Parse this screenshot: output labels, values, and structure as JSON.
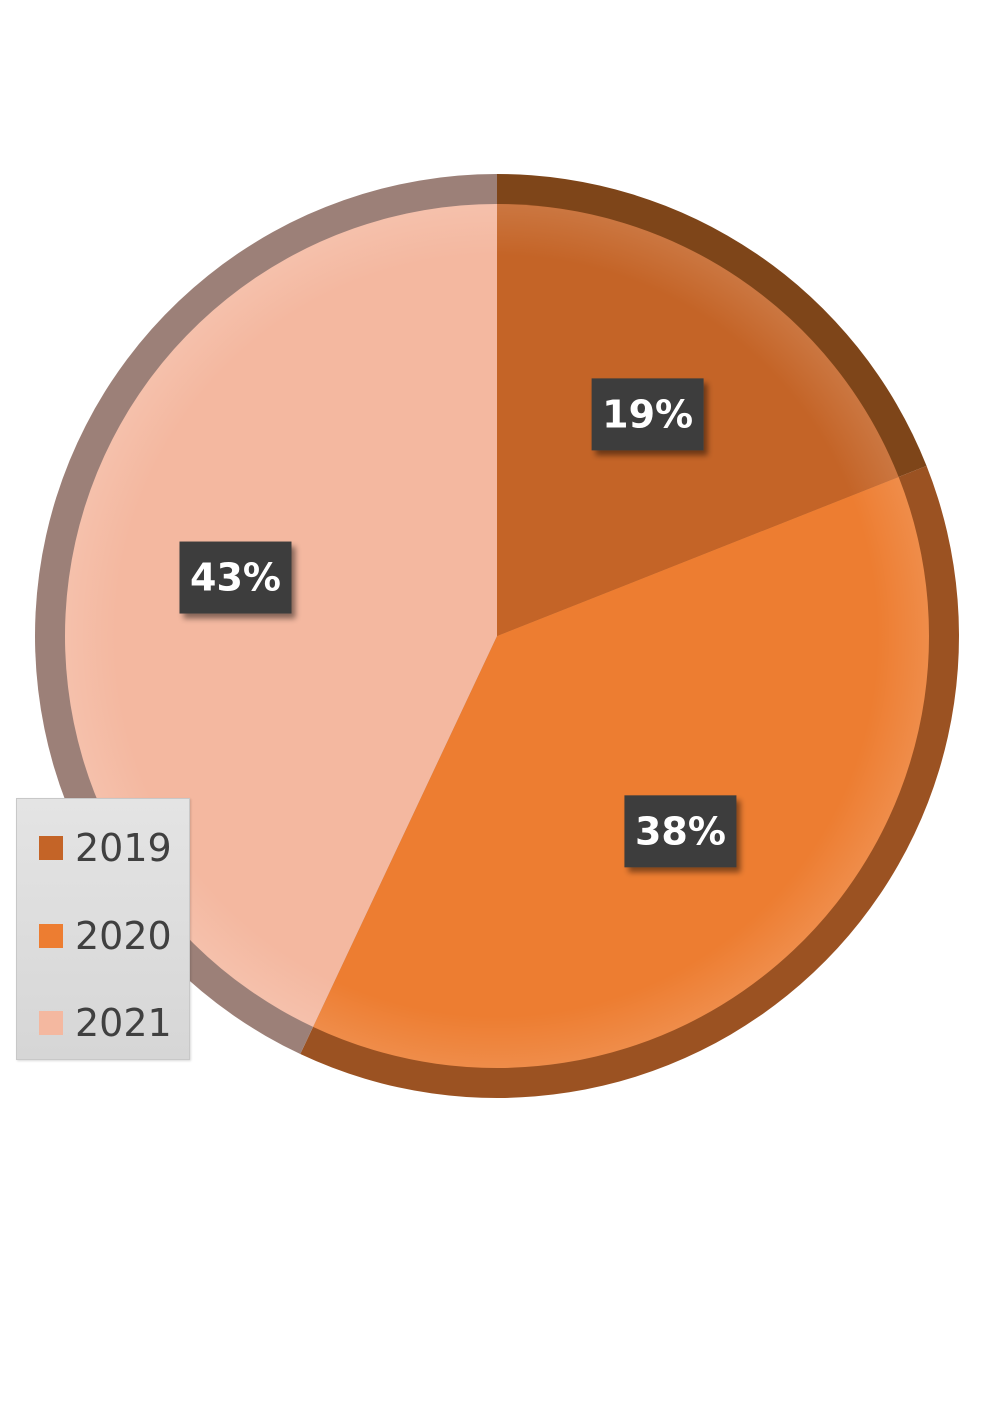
{
  "chart_data": {
    "type": "pie",
    "categories": [
      "2019",
      "2020",
      "2021"
    ],
    "values": [
      19,
      38,
      43
    ],
    "data_labels": [
      "19%",
      "38%",
      "43%"
    ],
    "colors": [
      "#c46427",
      "#ed7d31",
      "#f4b8a0"
    ],
    "rim_colors": [
      "#7e4519",
      "#9b5222",
      "#9c8078"
    ],
    "label_box_color": "#3c3c3c",
    "start_angle_deg": 0,
    "direction": "clockwise",
    "legend": {
      "placement": "bottom-left",
      "entries": [
        "2019",
        "2020",
        "2021"
      ]
    },
    "title": "",
    "grid": false
  }
}
